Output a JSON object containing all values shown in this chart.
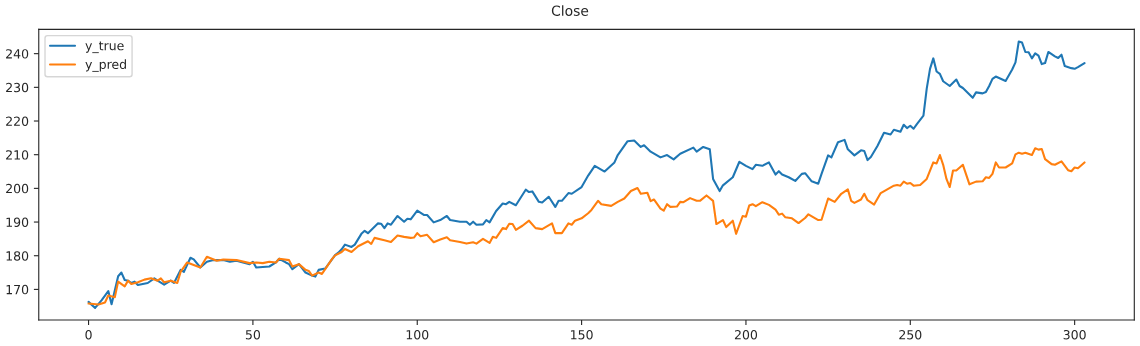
{
  "chart_data": {
    "type": "line",
    "title": "Close",
    "xlim": [
      -15.15,
      318.15
    ],
    "xticks": [
      0,
      50,
      100,
      150,
      200,
      250,
      300
    ],
    "ylim": [
      160.9,
      247.2
    ],
    "yticks": [
      170,
      180,
      190,
      200,
      210,
      220,
      230,
      240
    ],
    "grid": false,
    "legend": "top left",
    "series": [
      {
        "name": "y_true",
        "color": "#1f77b4",
        "x": [
          0,
          2,
          4,
          6,
          7,
          9,
          10,
          11,
          12,
          13,
          14,
          15,
          18,
          20,
          21,
          23,
          25,
          26,
          28,
          29,
          31,
          32,
          34,
          36,
          38,
          41,
          43,
          45,
          47,
          49,
          50,
          51,
          55,
          57,
          58,
          60,
          61,
          62,
          64,
          66,
          68,
          69,
          70,
          72,
          75,
          76,
          77,
          78,
          80,
          81,
          83,
          84,
          85,
          88,
          89,
          90,
          91,
          92,
          94,
          96,
          97,
          98,
          100,
          102,
          103,
          105,
          107,
          109,
          110,
          113,
          115,
          116,
          117,
          118,
          120,
          121,
          122,
          124,
          126,
          127,
          128,
          130,
          133,
          134,
          135,
          137,
          138,
          140,
          142,
          143,
          144,
          146,
          147,
          150,
          152,
          154,
          157,
          160,
          161,
          164,
          166,
          168,
          169,
          171,
          174,
          176,
          178,
          180,
          184,
          185,
          187,
          189,
          190,
          192,
          193,
          196,
          198,
          200,
          202,
          203,
          205,
          207,
          209,
          210,
          211,
          213,
          215,
          217,
          218,
          220,
          222,
          223,
          225,
          226,
          228,
          230,
          231,
          233,
          235,
          236,
          237,
          238,
          240,
          242,
          244,
          245,
          247,
          248,
          249,
          250,
          251,
          252,
          254,
          255,
          256,
          257,
          258,
          259,
          260,
          262,
          264,
          265,
          266,
          269,
          270,
          272,
          273,
          274,
          275,
          276,
          279,
          281,
          282,
          283,
          284,
          285,
          286,
          287,
          288,
          289,
          290,
          291,
          292,
          294,
          295,
          296,
          297,
          299,
          300,
          301,
          303
        ],
        "values": [
          166.3,
          164.5,
          166.8,
          169.5,
          165.6,
          173.9,
          175.0,
          172.8,
          172.6,
          171.9,
          172.3,
          171.3,
          171.9,
          173.3,
          172.6,
          171.4,
          172.6,
          171.9,
          175.8,
          175.2,
          179.4,
          178.9,
          176.5,
          178.2,
          178.7,
          178.7,
          178.2,
          178.5,
          178.0,
          177.5,
          178.2,
          176.5,
          176.8,
          178.0,
          179.1,
          178.0,
          177.5,
          176.0,
          177.5,
          175.0,
          174.1,
          173.8,
          175.8,
          176.2,
          180.2,
          180.9,
          181.9,
          183.3,
          182.6,
          183.3,
          186.5,
          187.4,
          186.7,
          189.6,
          189.5,
          188.2,
          189.6,
          189.2,
          191.8,
          190.1,
          191.0,
          190.8,
          193.4,
          192.1,
          192.1,
          189.9,
          190.6,
          191.8,
          190.6,
          190.1,
          190.1,
          189.2,
          190.1,
          189.2,
          189.3,
          190.6,
          189.9,
          193.3,
          195.5,
          195.3,
          196.0,
          195.0,
          199.6,
          198.9,
          199.1,
          196.0,
          195.8,
          197.5,
          194.5,
          196.3,
          196.3,
          198.6,
          198.4,
          200.4,
          203.8,
          206.7,
          205.0,
          207.7,
          209.9,
          214.0,
          214.2,
          212.3,
          212.8,
          210.9,
          209.2,
          209.9,
          208.6,
          210.3,
          212.1,
          210.9,
          212.3,
          211.6,
          202.8,
          199.2,
          200.9,
          203.3,
          207.9,
          206.7,
          205.7,
          207.0,
          206.7,
          207.7,
          204.1,
          205.1,
          204.1,
          203.3,
          202.2,
          204.3,
          204.5,
          202.1,
          201.4,
          204.3,
          209.8,
          209.2,
          213.7,
          214.4,
          211.6,
          209.8,
          211.3,
          211.1,
          208.4,
          209.3,
          212.6,
          216.5,
          216.0,
          217.4,
          216.8,
          218.9,
          217.9,
          218.6,
          217.7,
          219.1,
          221.6,
          229.6,
          235.5,
          238.6,
          234.7,
          234.0,
          231.8,
          230.4,
          232.3,
          230.4,
          229.8,
          226.9,
          228.5,
          228.2,
          228.6,
          230.4,
          232.5,
          233.2,
          231.9,
          235.3,
          237.4,
          243.6,
          243.3,
          240.5,
          240.4,
          238.6,
          240.1,
          239.4,
          236.9,
          237.2,
          240.5,
          239.2,
          238.7,
          239.7,
          236.3,
          235.7,
          235.5,
          236.0,
          237.2
        ]
      },
      {
        "name": "y_pred",
        "color": "#ff7f0e",
        "x": [
          0,
          3,
          5,
          6,
          8,
          9,
          11,
          12,
          13,
          15,
          17,
          19,
          21,
          22,
          23,
          25,
          27,
          28,
          30,
          34,
          36,
          39,
          41,
          45,
          49,
          51,
          53,
          55,
          57,
          58,
          61,
          62,
          64,
          66,
          67,
          68,
          70,
          71,
          72,
          74,
          75,
          77,
          78,
          80,
          82,
          85,
          86,
          87,
          90,
          92,
          94,
          96,
          98,
          99,
          100,
          101,
          103,
          105,
          107,
          109,
          110,
          113,
          115,
          117,
          118,
          120,
          122,
          123,
          124,
          126,
          127,
          128,
          129,
          130,
          132,
          134,
          136,
          138,
          141,
          142,
          144,
          146,
          147,
          148,
          150,
          152,
          153,
          155,
          156,
          159,
          161,
          163,
          165,
          167,
          168,
          170,
          171,
          172,
          174,
          175,
          176,
          177,
          179,
          180,
          181,
          183,
          185,
          186,
          188,
          190,
          191,
          193,
          194,
          196,
          197,
          199,
          200,
          201,
          202,
          203,
          205,
          207,
          209,
          210,
          211,
          212,
          214,
          216,
          218,
          219,
          222,
          223,
          225,
          227,
          229,
          231,
          232,
          233,
          235,
          236,
          237,
          239,
          241,
          245,
          246,
          247,
          248,
          249,
          250,
          251,
          253,
          255,
          257,
          258,
          259,
          260,
          261,
          262,
          263,
          264,
          266,
          268,
          270,
          272,
          273,
          274,
          275,
          276,
          277,
          279,
          281,
          282,
          283,
          284,
          285,
          287,
          288,
          289,
          290,
          291,
          293,
          294,
          296,
          298,
          299,
          300,
          301,
          303
        ],
        "values": [
          165.8,
          165.5,
          166.1,
          168.2,
          167.7,
          172.3,
          170.9,
          172.6,
          171.6,
          172.1,
          172.9,
          173.3,
          172.6,
          173.3,
          172.1,
          172.6,
          171.9,
          175.2,
          178.0,
          176.5,
          179.7,
          178.5,
          178.9,
          178.7,
          177.8,
          178.0,
          177.8,
          178.2,
          178.0,
          179.1,
          178.7,
          176.8,
          177.5,
          175.8,
          175.5,
          174.1,
          175.0,
          174.6,
          176.0,
          178.9,
          180.1,
          181.1,
          182.0,
          181.1,
          182.8,
          184.3,
          183.5,
          185.3,
          184.6,
          184.1,
          186.0,
          185.6,
          185.3,
          185.4,
          186.7,
          185.8,
          186.2,
          184.0,
          184.8,
          185.5,
          184.6,
          184.1,
          183.6,
          184.0,
          183.6,
          185.0,
          183.8,
          185.6,
          185.3,
          188.2,
          187.9,
          189.5,
          189.4,
          187.7,
          188.9,
          190.4,
          188.2,
          187.9,
          189.6,
          186.7,
          186.7,
          189.6,
          189.2,
          190.4,
          191.1,
          192.6,
          193.6,
          196.3,
          195.3,
          194.8,
          196.0,
          197.0,
          199.2,
          200.1,
          198.4,
          198.7,
          196.2,
          196.7,
          194.0,
          193.4,
          195.3,
          194.5,
          194.6,
          196.0,
          195.9,
          197.1,
          196.3,
          196.3,
          197.9,
          196.3,
          189.4,
          190.6,
          188.5,
          190.4,
          186.5,
          191.8,
          191.6,
          194.9,
          195.3,
          194.7,
          195.9,
          195.1,
          193.7,
          192.2,
          192.5,
          191.4,
          191.1,
          189.7,
          191.2,
          192.3,
          190.6,
          190.7,
          197.0,
          196.0,
          198.4,
          199.7,
          196.3,
          195.7,
          196.7,
          198.4,
          196.5,
          195.2,
          198.6,
          200.8,
          201.0,
          200.8,
          202.0,
          201.4,
          201.6,
          200.8,
          201.0,
          202.8,
          207.7,
          207.4,
          209.9,
          207.0,
          202.8,
          200.4,
          205.3,
          205.3,
          207.0,
          201.2,
          202.0,
          202.1,
          203.3,
          203.1,
          204.3,
          207.7,
          206.2,
          206.2,
          207.4,
          210.1,
          210.6,
          210.3,
          210.6,
          209.9,
          211.9,
          211.5,
          211.7,
          208.7,
          207.2,
          207.0,
          208.0,
          205.4,
          205.1,
          206.2,
          206.0,
          207.7
        ]
      }
    ]
  }
}
